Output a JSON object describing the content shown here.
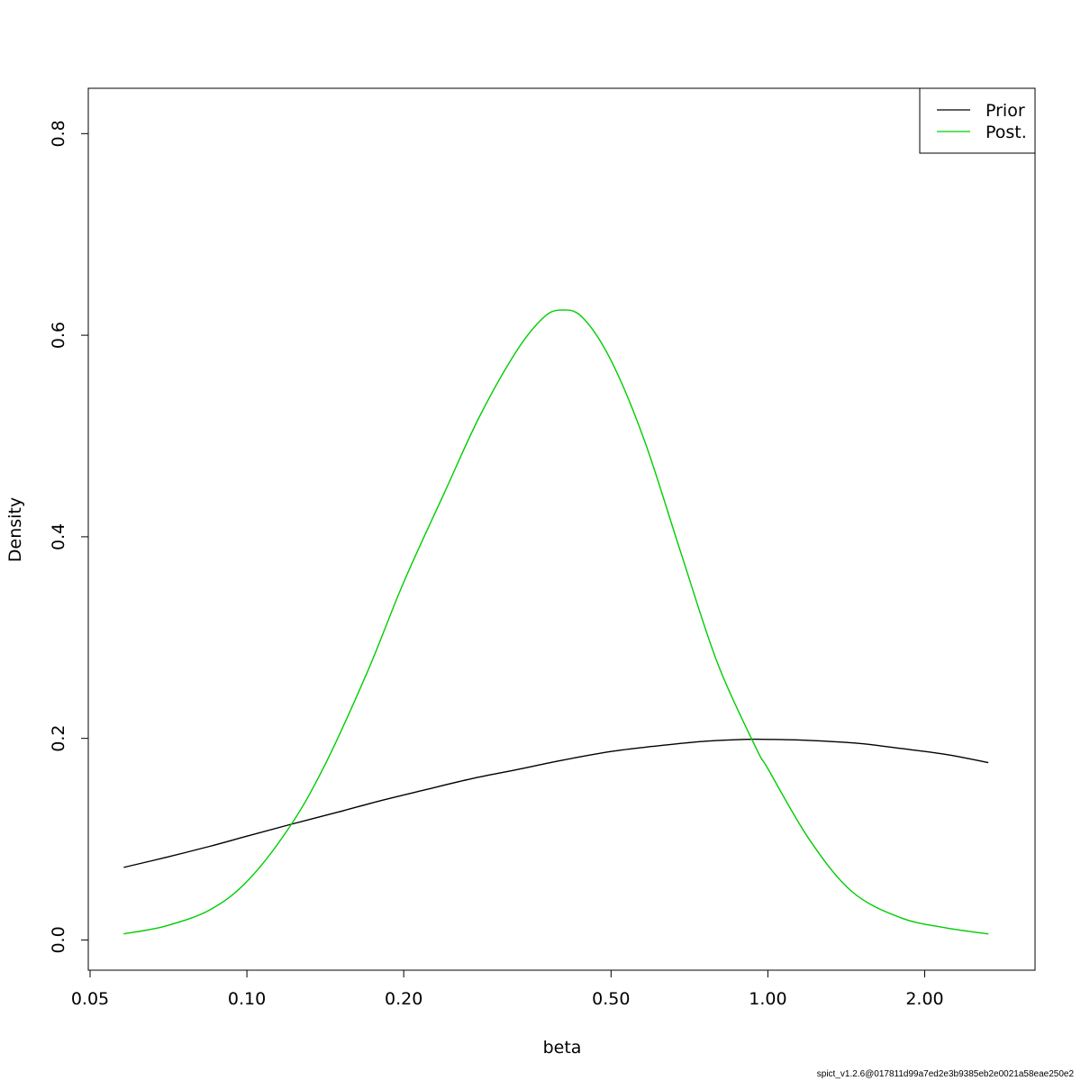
{
  "chart_data": {
    "type": "line",
    "title": "",
    "xlabel": "beta",
    "ylabel": "Density",
    "x_scale": "log",
    "xlim": [
      0.05,
      2.8
    ],
    "ylim": [
      -0.03,
      0.845
    ],
    "x_ticks": [
      0.05,
      0.1,
      0.2,
      0.5,
      1.0,
      2.0
    ],
    "x_tick_labels": [
      "0.05",
      "0.10",
      "0.20",
      "0.50",
      "1.00",
      "2.00"
    ],
    "y_ticks": [
      0.0,
      0.2,
      0.4,
      0.6,
      0.8
    ],
    "y_tick_labels": [
      "0.0",
      "0.2",
      "0.4",
      "0.6",
      "0.8"
    ],
    "grid": false,
    "legend_position": "top-right",
    "series": [
      {
        "name": "Prior",
        "color": "#000000",
        "x": [
          0.058,
          0.07,
          0.085,
          0.1,
          0.12,
          0.15,
          0.18,
          0.22,
          0.27,
          0.33,
          0.4,
          0.5,
          0.6,
          0.75,
          0.9,
          1.0,
          1.2,
          1.5,
          1.8,
          2.2,
          2.65
        ],
        "y": [
          0.072,
          0.082,
          0.093,
          0.103,
          0.114,
          0.127,
          0.138,
          0.149,
          0.16,
          0.169,
          0.178,
          0.187,
          0.192,
          0.197,
          0.199,
          0.199,
          0.198,
          0.195,
          0.19,
          0.184,
          0.176
        ]
      },
      {
        "name": "Post.",
        "color": "#00cd00",
        "x": [
          0.058,
          0.07,
          0.085,
          0.1,
          0.12,
          0.14,
          0.17,
          0.2,
          0.24,
          0.28,
          0.33,
          0.37,
          0.4,
          0.44,
          0.5,
          0.58,
          0.68,
          0.8,
          0.95,
          1.0,
          1.2,
          1.45,
          1.8,
          2.2,
          2.65
        ],
        "y": [
          0.006,
          0.014,
          0.03,
          0.058,
          0.11,
          0.17,
          0.265,
          0.355,
          0.445,
          0.52,
          0.585,
          0.617,
          0.625,
          0.618,
          0.575,
          0.495,
          0.385,
          0.275,
          0.19,
          0.17,
          0.1,
          0.048,
          0.022,
          0.012,
          0.006
        ]
      }
    ]
  },
  "footer": "spict_v1.2.6@017811d99a7ed2e3b9385eb2e0021a58eae250e2"
}
